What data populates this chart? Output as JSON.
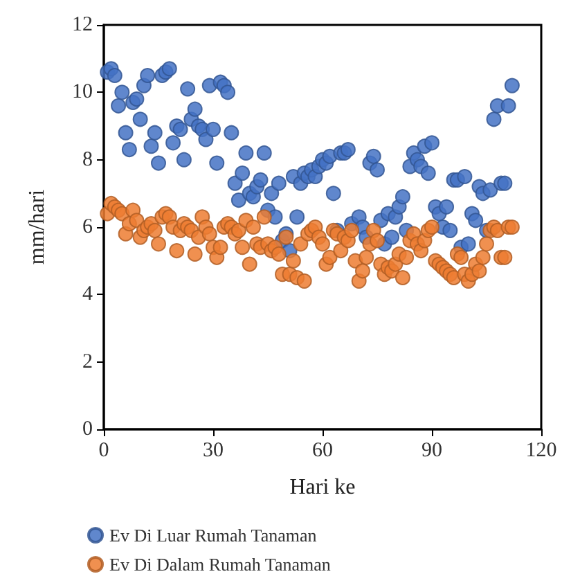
{
  "chart_data": {
    "type": "scatter",
    "xlabel": "Hari ke",
    "ylabel": "mm/hari",
    "x": [
      1,
      2,
      3,
      4,
      5,
      6,
      7,
      8,
      9,
      10,
      11,
      12,
      13,
      14,
      15,
      16,
      17,
      18,
      19,
      20,
      21,
      22,
      23,
      24,
      25,
      26,
      27,
      28,
      29,
      30,
      31,
      32,
      33,
      34,
      35,
      36,
      37,
      38,
      39,
      40,
      41,
      42,
      43,
      44,
      45,
      46,
      47,
      48,
      49,
      50,
      51,
      52,
      53,
      54,
      55,
      56,
      57,
      58,
      59,
      60,
      61,
      62,
      63,
      64,
      65,
      66,
      67,
      68,
      69,
      70,
      71,
      72,
      73,
      74,
      75,
      76,
      77,
      78,
      79,
      80,
      81,
      82,
      83,
      84,
      85,
      86,
      87,
      88,
      89,
      90,
      91,
      92,
      93,
      94,
      95,
      96,
      97,
      98,
      99,
      100,
      101,
      102,
      103,
      104,
      105,
      106,
      107,
      108,
      109,
      110,
      111,
      112
    ],
    "series": [
      {
        "name": "Ev Di Luar Rumah Tanaman",
        "color": "#4472c4",
        "values": [
          10.6,
          10.7,
          10.5,
          9.6,
          10.0,
          8.8,
          8.3,
          9.7,
          9.8,
          9.2,
          10.2,
          10.5,
          8.4,
          8.8,
          7.9,
          10.5,
          10.6,
          10.7,
          8.5,
          9.0,
          8.9,
          8.0,
          10.1,
          9.2,
          9.5,
          9.0,
          8.9,
          8.6,
          10.2,
          8.9,
          7.9,
          10.3,
          10.2,
          10.0,
          8.8,
          7.3,
          6.8,
          7.6,
          8.2,
          7.0,
          6.9,
          7.2,
          7.4,
          8.2,
          6.5,
          7.0,
          6.3,
          7.3,
          5.6,
          5.8,
          5.3,
          7.5,
          6.3,
          7.3,
          7.6,
          7.5,
          7.7,
          7.5,
          7.8,
          8.0,
          7.9,
          8.1,
          7.0,
          5.9,
          8.2,
          8.2,
          8.3,
          6.1,
          null,
          6.3,
          6.0,
          5.7,
          7.9,
          8.1,
          7.7,
          6.2,
          5.5,
          6.4,
          5.7,
          6.3,
          6.6,
          6.9,
          5.9,
          7.8,
          8.2,
          8.0,
          7.8,
          8.4,
          7.6,
          8.5,
          6.6,
          6.4,
          6.0,
          6.6,
          5.9,
          7.4,
          7.4,
          5.4,
          7.5,
          5.5,
          6.4,
          6.2,
          7.2,
          7.0,
          5.9,
          7.1,
          9.2,
          9.6,
          7.3,
          7.3,
          9.6,
          10.2
        ]
      },
      {
        "name": "Ev Di Dalam Rumah Tanaman",
        "color": "#ed7d31",
        "values": [
          6.4,
          6.7,
          6.6,
          6.5,
          6.4,
          5.8,
          6.1,
          6.5,
          6.2,
          5.7,
          5.9,
          6.0,
          6.1,
          5.9,
          5.5,
          6.3,
          6.4,
          6.3,
          6.0,
          5.3,
          5.9,
          6.1,
          6.0,
          5.9,
          5.2,
          5.7,
          6.3,
          6.0,
          5.8,
          5.4,
          5.1,
          5.4,
          6.0,
          6.1,
          6.0,
          5.8,
          5.9,
          5.4,
          6.2,
          4.9,
          6.0,
          5.5,
          5.4,
          6.3,
          5.5,
          5.3,
          5.4,
          5.2,
          4.6,
          5.7,
          4.6,
          5.0,
          4.5,
          5.5,
          4.4,
          5.8,
          5.9,
          6.0,
          5.7,
          5.5,
          4.9,
          5.1,
          5.9,
          5.8,
          5.3,
          5.7,
          5.6,
          5.9,
          5.0,
          4.4,
          4.7,
          5.1,
          5.5,
          5.9,
          5.6,
          4.9,
          4.6,
          4.8,
          4.7,
          4.9,
          5.2,
          4.5,
          5.1,
          5.6,
          5.8,
          5.5,
          5.3,
          5.6,
          5.9,
          6.0,
          5.0,
          4.9,
          4.8,
          4.7,
          4.6,
          4.5,
          5.2,
          5.1,
          4.6,
          4.4,
          4.6,
          4.9,
          4.7,
          5.1,
          5.5,
          5.9,
          6.0,
          5.9,
          5.1,
          5.1,
          6.0,
          6.0
        ]
      }
    ],
    "xlim": [
      0,
      120
    ],
    "xticks": [
      0,
      30,
      60,
      90,
      120
    ],
    "ylim": [
      0,
      12
    ],
    "yticks": [
      0,
      2,
      4,
      6,
      8,
      10,
      12
    ],
    "grid": false,
    "legend": "bottom",
    "marker": "circle"
  }
}
